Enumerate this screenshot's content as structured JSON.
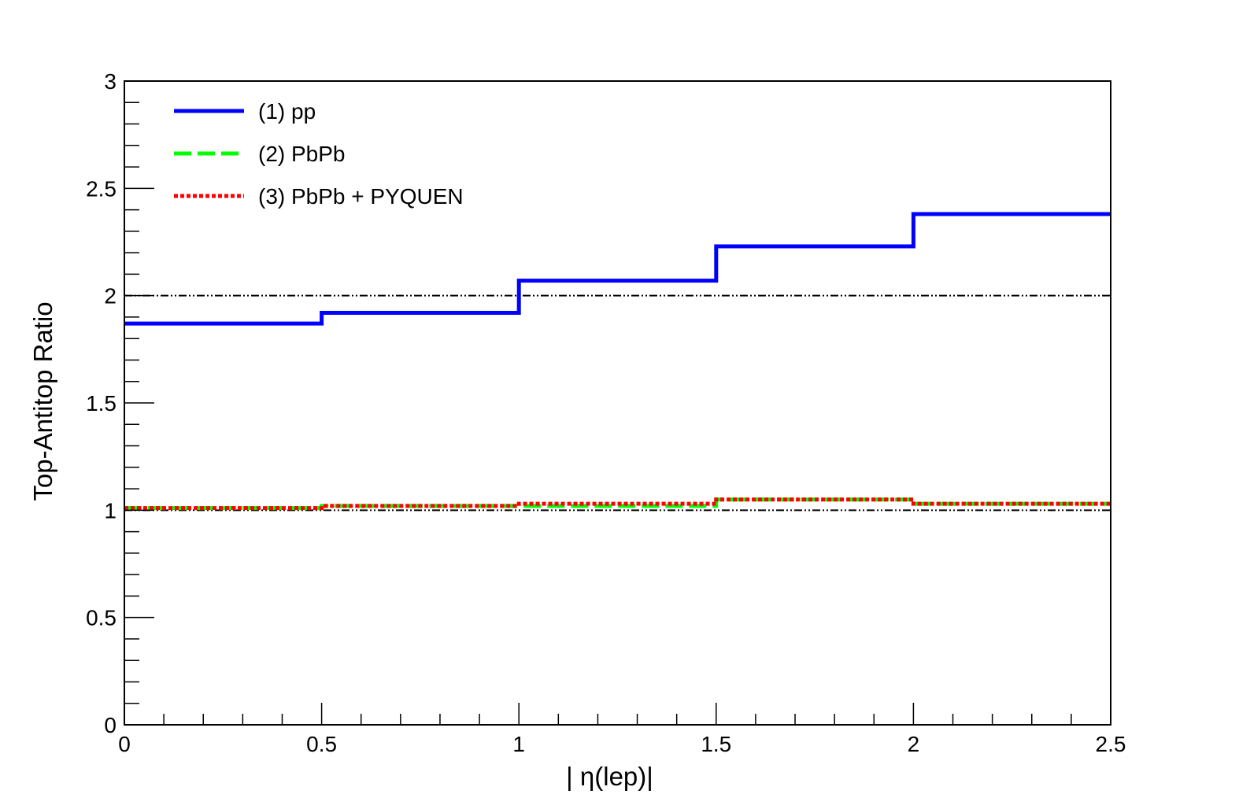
{
  "chart_data": {
    "type": "line",
    "xlabel": "| η(lep)|",
    "ylabel": "Top-Antitop Ratio",
    "xlim": [
      0,
      2.5
    ],
    "ylim": [
      0,
      3
    ],
    "x_ticks": [
      "0",
      "0.5",
      "1",
      "1.5",
      "2",
      "2.5"
    ],
    "y_ticks": [
      "0",
      "0.5",
      "1",
      "1.5",
      "2",
      "2.5",
      "3"
    ],
    "bin_edges": [
      0,
      0.5,
      1,
      1.5,
      2,
      2.5
    ],
    "reference_lines": [
      1,
      2
    ],
    "legend_position": "top-left",
    "grid": false,
    "series": [
      {
        "name": "(1) pp",
        "values": [
          1.87,
          1.92,
          2.07,
          2.23,
          2.38
        ],
        "color": "#0000ff",
        "style": "solid"
      },
      {
        "name": "(2) PbPb",
        "values": [
          1.01,
          1.02,
          1.02,
          1.05,
          1.03
        ],
        "color": "#00ff00",
        "style": "dashed"
      },
      {
        "name": "(3) PbPb + PYQUEN",
        "values": [
          1.01,
          1.02,
          1.03,
          1.05,
          1.03
        ],
        "color": "#ff0000",
        "style": "dotted"
      }
    ]
  }
}
